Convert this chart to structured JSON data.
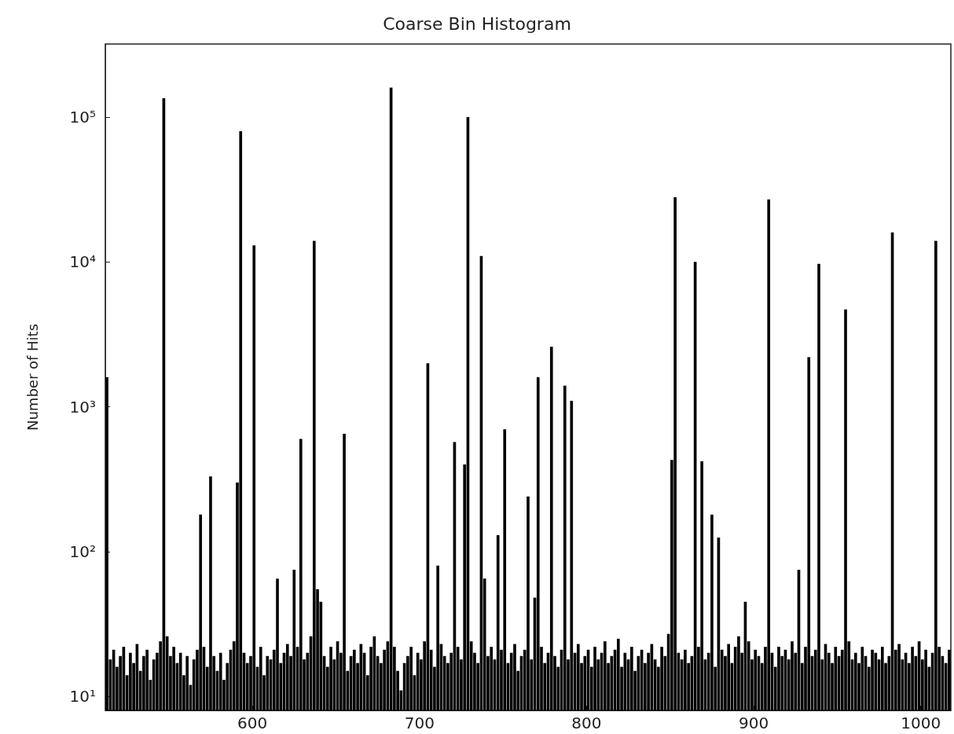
{
  "chart_data": {
    "type": "histogram",
    "title": "Coarse Bin Histogram",
    "ylabel": "Number of Hits",
    "bins": [
      512,
      514,
      516,
      518,
      520,
      522,
      524,
      526,
      528,
      530,
      532,
      534,
      536,
      538,
      540,
      542,
      544,
      546,
      548,
      550,
      552,
      554,
      556,
      558,
      560,
      562,
      564,
      566,
      568,
      570,
      572,
      574,
      576,
      578,
      580,
      582,
      584,
      586,
      588,
      590,
      592,
      594,
      596,
      598,
      600,
      602,
      604,
      606,
      608,
      610,
      612,
      614,
      616,
      618,
      620,
      622,
      624,
      626,
      628,
      630,
      632,
      634,
      636,
      638,
      640,
      642,
      644,
      646,
      648,
      650,
      652,
      654,
      656,
      658,
      660,
      662,
      664,
      666,
      668,
      670,
      672,
      674,
      676,
      678,
      680,
      682,
      684,
      686,
      688,
      690,
      692,
      694,
      696,
      698,
      700,
      702,
      704,
      706,
      708,
      710,
      712,
      714,
      716,
      718,
      720,
      722,
      724,
      726,
      728,
      730,
      732,
      734,
      736,
      738,
      740,
      742,
      744,
      746,
      748,
      750,
      752,
      754,
      756,
      758,
      760,
      762,
      764,
      766,
      768,
      770,
      772,
      774,
      776,
      778,
      780,
      782,
      784,
      786,
      788,
      790,
      792,
      794,
      796,
      798,
      800,
      802,
      804,
      806,
      808,
      810,
      812,
      814,
      816,
      818,
      820,
      822,
      824,
      826,
      828,
      830,
      832,
      834,
      836,
      838,
      840,
      842,
      844,
      846,
      848,
      850,
      852,
      854,
      856,
      858,
      860,
      862,
      864,
      866,
      868,
      870,
      872,
      874,
      876,
      878,
      880,
      882,
      884,
      886,
      888,
      890,
      892,
      894,
      896,
      898,
      900,
      902,
      904,
      906,
      908,
      910,
      912,
      914,
      916,
      918,
      920,
      922,
      924,
      926,
      928,
      930,
      932,
      934,
      936,
      938,
      940,
      942,
      944,
      946,
      948,
      950,
      952,
      954,
      956,
      958,
      960,
      962,
      964,
      966,
      968,
      970,
      972,
      974,
      976,
      978,
      980,
      982,
      984,
      986,
      988,
      990,
      992,
      994,
      996,
      998,
      1000,
      1002,
      1004,
      1006,
      1008,
      1010,
      1012,
      1014,
      1016,
      1018
    ],
    "values": [
      1600,
      18,
      21,
      16,
      19,
      22,
      14,
      20,
      17,
      23,
      15,
      19,
      21,
      13,
      18,
      20,
      24,
      135000,
      26,
      19,
      22,
      17,
      20,
      14,
      19,
      12,
      18,
      21,
      180,
      22,
      16,
      330,
      19,
      15,
      20,
      13,
      17,
      21,
      24,
      300,
      80000,
      20,
      17,
      19,
      13000,
      16,
      22,
      14,
      19,
      18,
      21,
      65,
      17,
      20,
      23,
      19,
      75,
      22,
      600,
      18,
      20,
      26,
      14000,
      55,
      45,
      19,
      16,
      22,
      18,
      24,
      20,
      650,
      15,
      19,
      21,
      17,
      23,
      20,
      14,
      22,
      26,
      19,
      17,
      21,
      24,
      160000,
      22,
      15,
      11,
      17,
      19,
      22,
      14,
      20,
      18,
      24,
      2000,
      21,
      16,
      80,
      23,
      19,
      17,
      20,
      570,
      22,
      18,
      400,
      100000,
      24,
      20,
      17,
      11000,
      65,
      19,
      22,
      18,
      130,
      21,
      700,
      17,
      20,
      23,
      15,
      19,
      21,
      240,
      18,
      48,
      1600,
      22,
      17,
      20,
      2600,
      19,
      16,
      21,
      1400,
      18,
      1100,
      20,
      23,
      17,
      19,
      21,
      16,
      22,
      18,
      20,
      24,
      17,
      19,
      21,
      25,
      16,
      20,
      18,
      22,
      15,
      19,
      21,
      17,
      20,
      23,
      18,
      16,
      22,
      19,
      27,
      430,
      28000,
      20,
      18,
      21,
      17,
      19,
      10000,
      22,
      420,
      18,
      20,
      180,
      16,
      125,
      21,
      19,
      23,
      17,
      22,
      26,
      20,
      45,
      24,
      18,
      21,
      19,
      17,
      22,
      27000,
      20,
      16,
      22,
      19,
      21,
      18,
      24,
      20,
      75,
      17,
      22,
      2200,
      19,
      21,
      9700,
      18,
      23,
      20,
      17,
      22,
      19,
      21,
      4700,
      24,
      18,
      20,
      17,
      22,
      19,
      16,
      21,
      20,
      18,
      22,
      17,
      19,
      16000,
      21,
      23,
      18,
      20,
      17,
      22,
      19,
      24,
      18,
      21,
      16,
      20,
      14000,
      22,
      19,
      17,
      21
    ],
    "color": "#000000",
    "log": true,
    "xlim": [
      512,
      1018
    ],
    "xticks": [
      600,
      700,
      800,
      900,
      1000
    ],
    "ylim": [
      8,
      320000
    ],
    "yticks": [
      {
        "value": 10,
        "label": "10¹"
      },
      {
        "value": 100,
        "label": "10²"
      },
      {
        "value": 1000,
        "label": "10³"
      },
      {
        "value": 10000,
        "label": "10⁴"
      },
      {
        "value": 100000,
        "label": "10⁵"
      }
    ]
  }
}
